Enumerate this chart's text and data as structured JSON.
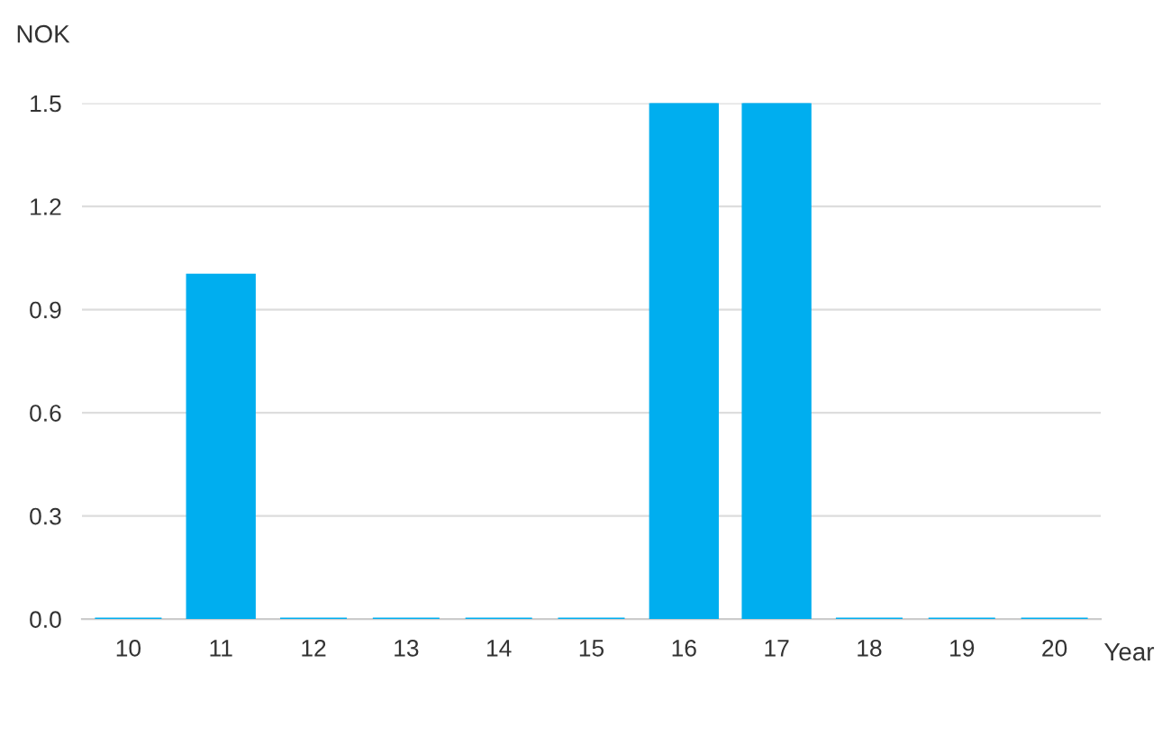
{
  "chart_data": {
    "type": "bar",
    "ylabel": "NOK",
    "xlabel": "Year",
    "categories": [
      "10",
      "11",
      "12",
      "13",
      "14",
      "15",
      "16",
      "17",
      "18",
      "19",
      "20"
    ],
    "values": [
      0,
      1.0,
      0,
      0,
      0,
      0,
      1.5,
      1.5,
      0,
      0,
      0
    ],
    "color": "#00aeef",
    "ylim": [
      0,
      1.5
    ],
    "yticks": [
      {
        "value": 0,
        "label": "0.0"
      },
      {
        "value": 0.3,
        "label": "0.3"
      },
      {
        "value": 0.6,
        "label": "0.6"
      },
      {
        "value": 0.9,
        "label": "0.9"
      },
      {
        "value": 1.2,
        "label": "1.2"
      },
      {
        "value": 1.5,
        "label": "1.5"
      }
    ],
    "grid": "y",
    "legend": false
  }
}
